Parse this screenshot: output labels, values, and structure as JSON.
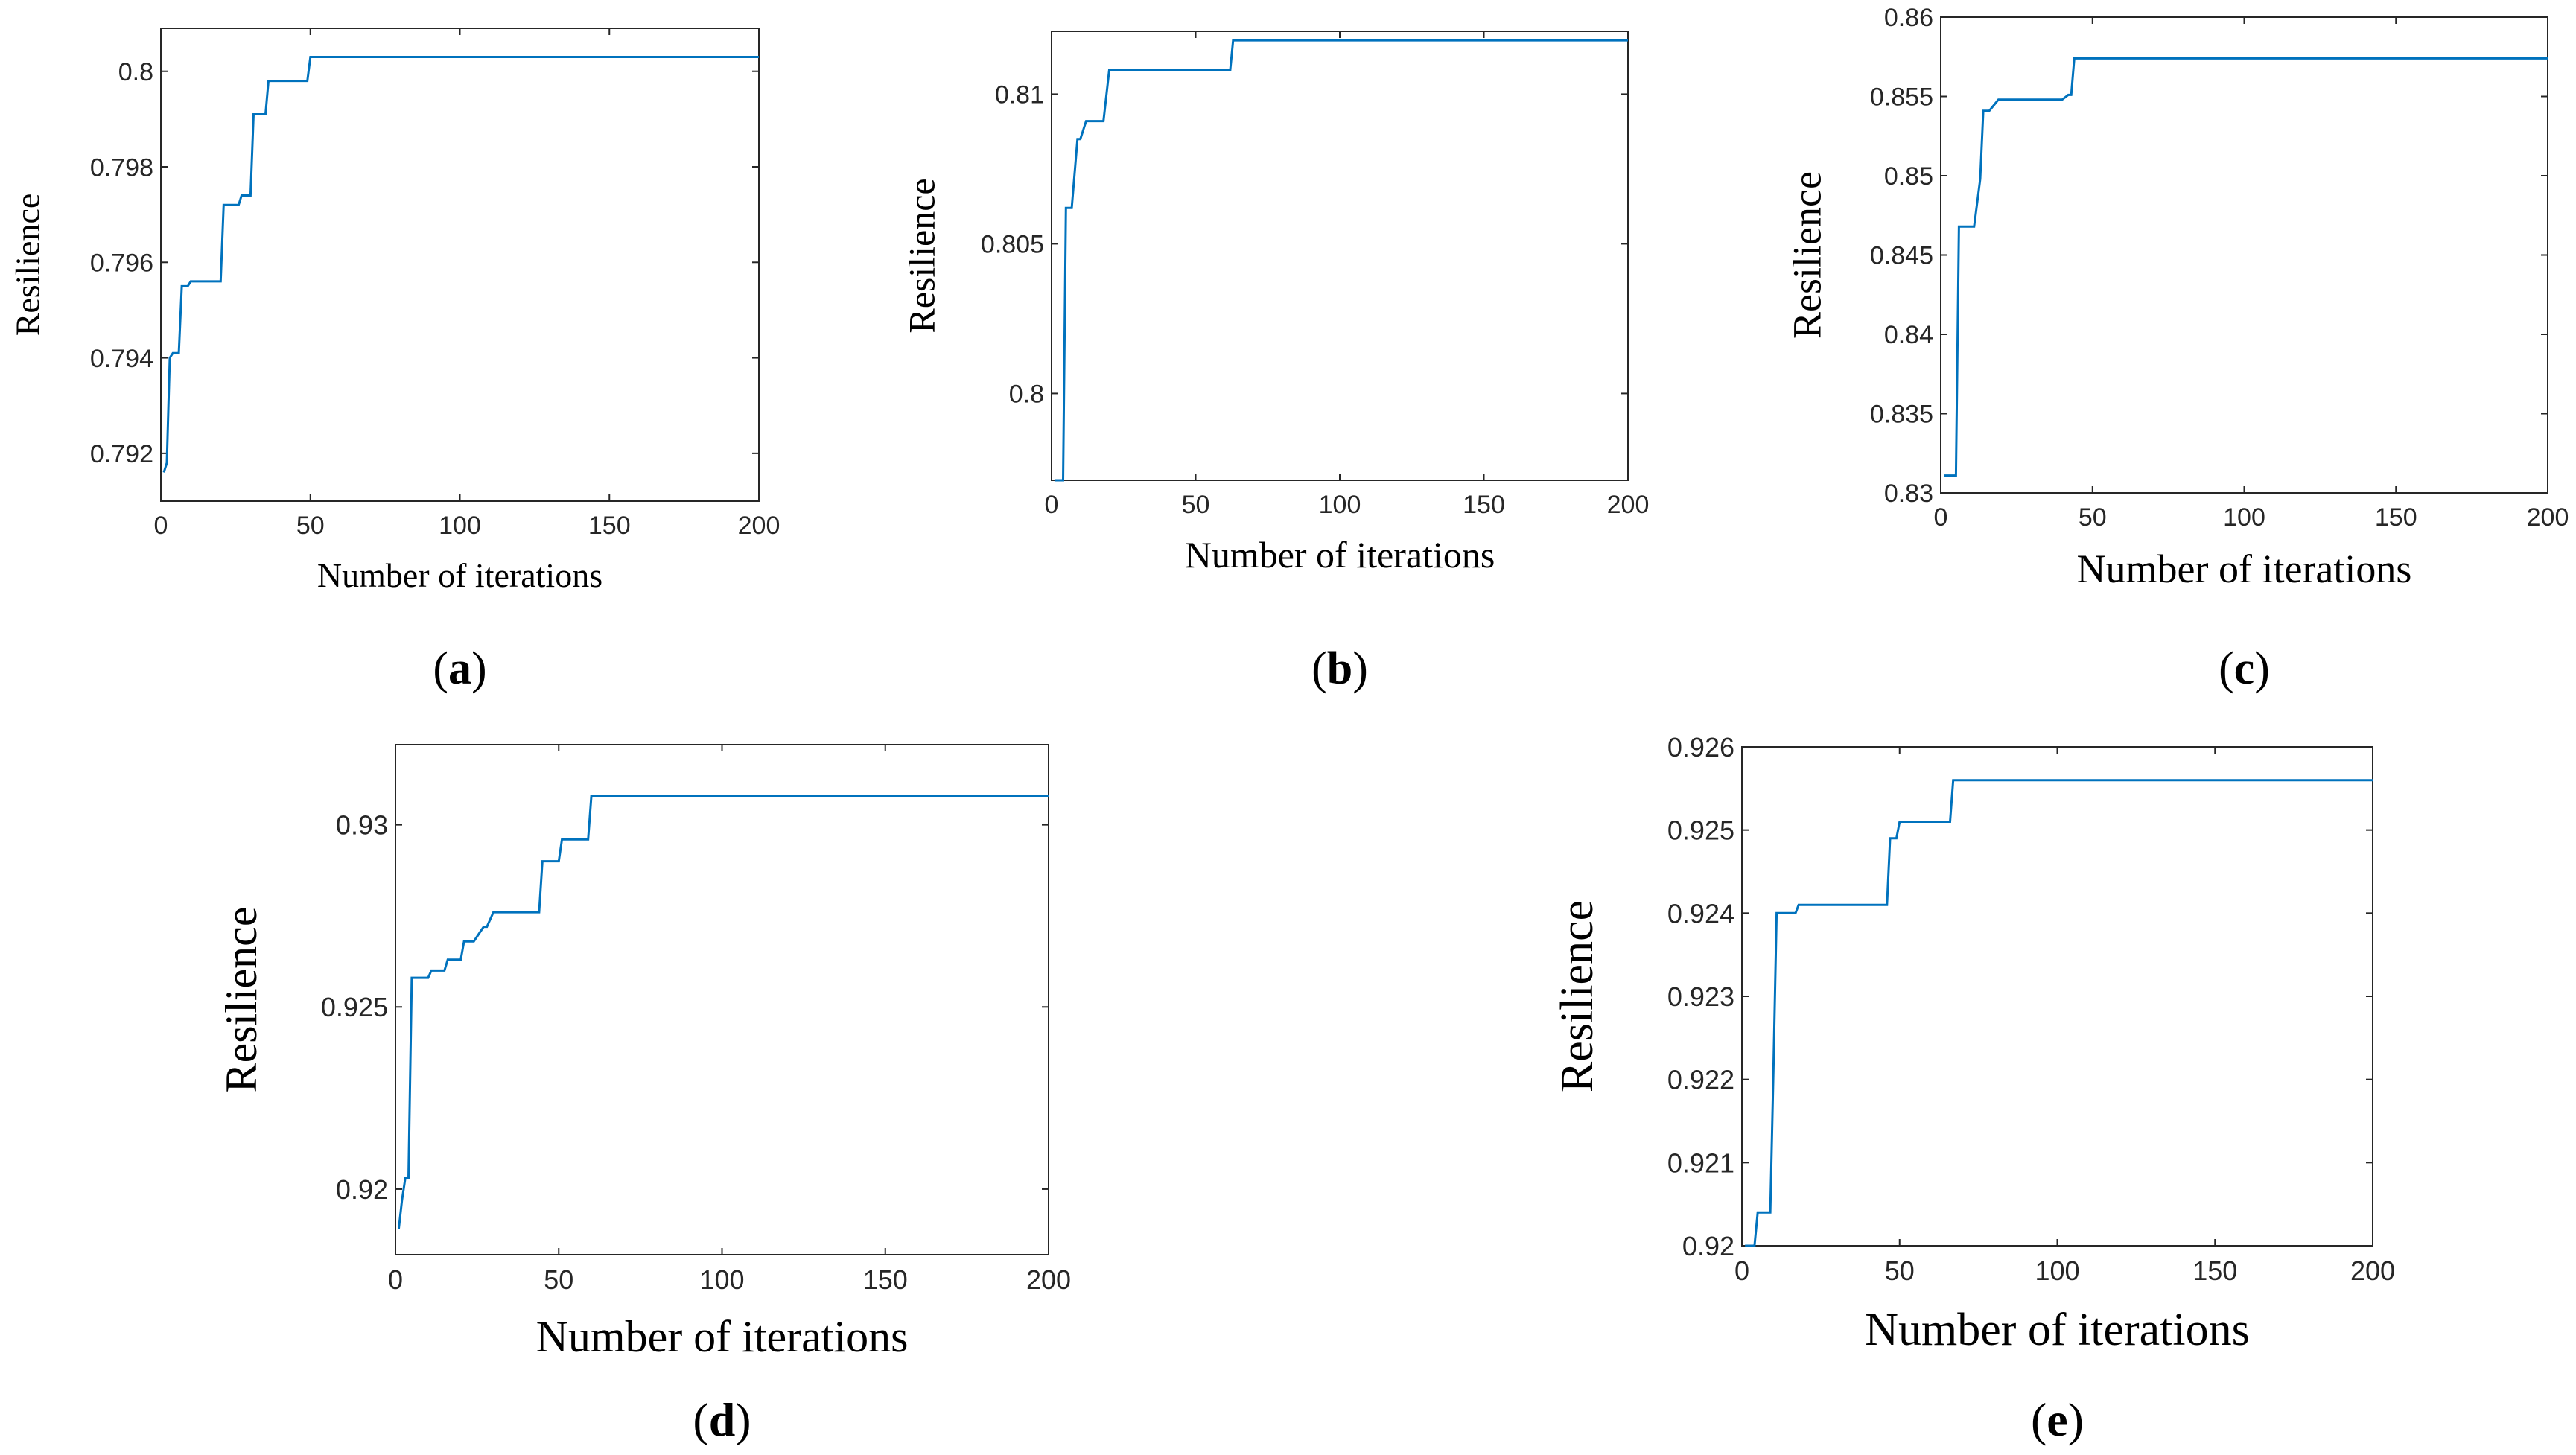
{
  "figure": {
    "line_color": "#0072BD",
    "axis_color": "#262626"
  },
  "chart_data": [
    {
      "id": "a",
      "type": "line",
      "caption": "a",
      "xlabel": "Number of iterations",
      "ylabel": "Resilience",
      "xlim": [
        0,
        200
      ],
      "ylim": [
        0.791,
        0.8009
      ],
      "xticks": [
        0,
        50,
        100,
        150,
        200
      ],
      "xtick_labels": [
        "0",
        "50",
        "100",
        "150",
        "200"
      ],
      "yticks": [
        0.792,
        0.794,
        0.796,
        0.798,
        0.8
      ],
      "ytick_labels": [
        "0.792",
        "0.794",
        "0.796",
        "0.798",
        "0.8"
      ],
      "series": [
        {
          "x": [
            1,
            2,
            3,
            4,
            6,
            7,
            8,
            9,
            10,
            12,
            13,
            15,
            16,
            20,
            21,
            22,
            26,
            27,
            30,
            31,
            32,
            35,
            36,
            37,
            49,
            50,
            200
          ],
          "y": [
            0.7916,
            0.7918,
            0.794,
            0.7941,
            0.7941,
            0.7955,
            0.7955,
            0.7955,
            0.7956,
            0.7956,
            0.7956,
            0.7956,
            0.7956,
            0.7956,
            0.7972,
            0.7972,
            0.7972,
            0.7974,
            0.7974,
            0.7991,
            0.7991,
            0.7991,
            0.7998,
            0.7998,
            0.7998,
            0.8003,
            0.8003
          ]
        }
      ]
    },
    {
      "id": "b",
      "type": "line",
      "caption": "b",
      "xlabel": "Number of iterations",
      "ylabel": "Resilience",
      "xlim": [
        0,
        200
      ],
      "ylim": [
        0.7971,
        0.8121
      ],
      "xticks": [
        0,
        50,
        100,
        150,
        200
      ],
      "xtick_labels": [
        "0",
        "50",
        "100",
        "150",
        "200"
      ],
      "yticks": [
        0.8,
        0.805,
        0.81
      ],
      "ytick_labels": [
        "0.8",
        "0.805",
        "0.81"
      ],
      "series": [
        {
          "x": [
            1,
            4,
            5,
            7,
            9,
            10,
            12,
            13,
            15,
            18,
            20,
            21,
            62,
            63,
            200
          ],
          "y": [
            0.7971,
            0.7971,
            0.8062,
            0.8062,
            0.8085,
            0.8085,
            0.8091,
            0.8091,
            0.8091,
            0.8091,
            0.8108,
            0.8108,
            0.8108,
            0.8118,
            0.8118
          ]
        }
      ]
    },
    {
      "id": "c",
      "type": "line",
      "caption": "c",
      "xlabel": "Number of iterations",
      "ylabel": "Resilience",
      "xlim": [
        0,
        200
      ],
      "ylim": [
        0.83,
        0.86
      ],
      "xticks": [
        0,
        50,
        100,
        150,
        200
      ],
      "xtick_labels": [
        "0",
        "50",
        "100",
        "150",
        "200"
      ],
      "yticks": [
        0.83,
        0.835,
        0.84,
        0.845,
        0.85,
        0.855,
        0.86
      ],
      "ytick_labels": [
        "0.83",
        "0.835",
        "0.84",
        "0.845",
        "0.85",
        "0.855",
        "0.86"
      ],
      "series": [
        {
          "x": [
            1,
            5,
            6,
            10,
            11,
            13,
            14,
            16,
            19,
            20,
            40,
            42,
            43,
            44,
            200
          ],
          "y": [
            0.8311,
            0.8311,
            0.8468,
            0.8468,
            0.8468,
            0.8498,
            0.8541,
            0.8541,
            0.8548,
            0.8548,
            0.8548,
            0.8551,
            0.8551,
            0.8574,
            0.8574
          ]
        }
      ]
    },
    {
      "id": "d",
      "type": "line",
      "caption": "d",
      "xlabel": "Number of iterations",
      "ylabel": "Resilience",
      "xlim": [
        0,
        200
      ],
      "ylim": [
        0.9182,
        0.9322
      ],
      "xticks": [
        0,
        50,
        100,
        150,
        200
      ],
      "xtick_labels": [
        "0",
        "50",
        "100",
        "150",
        "200"
      ],
      "yticks": [
        0.92,
        0.925,
        0.93
      ],
      "ytick_labels": [
        "0.92",
        "0.925",
        "0.93"
      ],
      "series": [
        {
          "x": [
            1,
            2,
            3,
            4,
            5,
            6,
            7,
            10,
            11,
            15,
            16,
            20,
            21,
            23,
            24,
            27,
            28,
            30,
            31,
            44,
            45,
            50,
            51,
            59,
            60,
            200
          ],
          "y": [
            0.9189,
            0.9197,
            0.9203,
            0.9203,
            0.9258,
            0.9258,
            0.9258,
            0.9258,
            0.926,
            0.926,
            0.9263,
            0.9263,
            0.9268,
            0.9268,
            0.9268,
            0.9272,
            0.9272,
            0.9276,
            0.9276,
            0.9276,
            0.929,
            0.929,
            0.9296,
            0.9296,
            0.9308,
            0.9308
          ]
        }
      ]
    },
    {
      "id": "e",
      "type": "line",
      "caption": "e",
      "xlabel": "Number of iterations",
      "ylabel": "Resilience",
      "xlim": [
        0,
        200
      ],
      "ylim": [
        0.92,
        0.926
      ],
      "xticks": [
        0,
        50,
        100,
        150,
        200
      ],
      "xtick_labels": [
        "0",
        "50",
        "100",
        "150",
        "200"
      ],
      "yticks": [
        0.92,
        0.921,
        0.922,
        0.923,
        0.924,
        0.925,
        0.926
      ],
      "ytick_labels": [
        "0.92",
        "0.921",
        "0.922",
        "0.923",
        "0.924",
        "0.925",
        "0.926"
      ],
      "series": [
        {
          "x": [
            1,
            4,
            5,
            8,
            9,
            10,
            11,
            14,
            15,
            17,
            18,
            46,
            47,
            49,
            50,
            52,
            66,
            67,
            200
          ],
          "y": [
            0.92,
            0.92,
            0.9204,
            0.9204,
            0.9204,
            0.9221,
            0.924,
            0.924,
            0.924,
            0.924,
            0.9241,
            0.9241,
            0.9249,
            0.9249,
            0.9251,
            0.9251,
            0.9251,
            0.9256,
            0.9256
          ]
        }
      ]
    }
  ]
}
